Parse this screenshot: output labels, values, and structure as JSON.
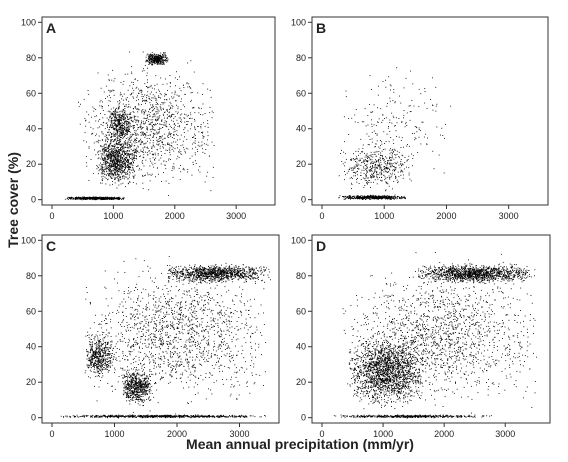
{
  "chart_data": [
    {
      "type": "scatter",
      "panel_label": "A",
      "xlim": [
        0,
        3600
      ],
      "ylim": [
        -3,
        103
      ],
      "x_ticks": [
        0,
        1000,
        2000,
        3000
      ],
      "y_ticks": [
        0,
        20,
        40,
        60,
        80,
        100
      ],
      "clusters": [
        {
          "x": [
            200,
            1200
          ],
          "y": [
            0,
            2
          ],
          "n": 600
        },
        {
          "x": [
            700,
            1400
          ],
          "y": [
            5,
            40
          ],
          "n": 900
        },
        {
          "x": [
            900,
            1300
          ],
          "y": [
            30,
            55
          ],
          "n": 350
        },
        {
          "x": [
            1500,
            1900
          ],
          "y": [
            75,
            84
          ],
          "n": 350
        },
        {
          "x": [
            400,
            2700
          ],
          "y": [
            0,
            85
          ],
          "n": 1200
        }
      ]
    },
    {
      "type": "scatter",
      "panel_label": "B",
      "xlim": [
        0,
        3600
      ],
      "ylim": [
        -3,
        103
      ],
      "x_ticks": [
        0,
        1000,
        2000,
        3000
      ],
      "y_ticks": [
        0,
        20,
        40,
        60,
        80,
        100
      ],
      "clusters": [
        {
          "x": [
            250,
            1400
          ],
          "y": [
            0,
            3
          ],
          "n": 500
        },
        {
          "x": [
            250,
            1500
          ],
          "y": [
            3,
            35
          ],
          "n": 450
        },
        {
          "x": [
            250,
            2100
          ],
          "y": [
            3,
            85
          ],
          "n": 200
        }
      ]
    },
    {
      "type": "scatter",
      "panel_label": "C",
      "xlim": [
        0,
        3600
      ],
      "ylim": [
        -3,
        103
      ],
      "x_ticks": [
        0,
        1000,
        2000,
        3000
      ],
      "y_ticks": [
        0,
        20,
        40,
        60,
        80,
        100
      ],
      "clusters": [
        {
          "x": [
            50,
            3500
          ],
          "y": [
            0,
            2
          ],
          "n": 700
        },
        {
          "x": [
            500,
            1000
          ],
          "y": [
            20,
            50
          ],
          "n": 500
        },
        {
          "x": [
            1100,
            1600
          ],
          "y": [
            5,
            30
          ],
          "n": 600
        },
        {
          "x": [
            1800,
            3500
          ],
          "y": [
            75,
            88
          ],
          "n": 1100
        },
        {
          "x": [
            500,
            3500
          ],
          "y": [
            0,
            95
          ],
          "n": 1500
        }
      ]
    },
    {
      "type": "scatter",
      "panel_label": "D",
      "xlim": [
        0,
        3700
      ],
      "ylim": [
        -3,
        103
      ],
      "x_ticks": [
        0,
        1000,
        2000,
        3000
      ],
      "y_ticks": [
        0,
        20,
        40,
        60,
        80,
        100
      ],
      "clusters": [
        {
          "x": [
            100,
            2800
          ],
          "y": [
            0,
            2
          ],
          "n": 500
        },
        {
          "x": [
            400,
            1700
          ],
          "y": [
            3,
            50
          ],
          "n": 1800
        },
        {
          "x": [
            1500,
            3500
          ],
          "y": [
            75,
            88
          ],
          "n": 1300
        },
        {
          "x": [
            300,
            3600
          ],
          "y": [
            0,
            95
          ],
          "n": 1500
        }
      ]
    }
  ],
  "ylabel": "Tree cover (%)",
  "xlabel": "Mean annual precipitation (mm/yr)",
  "colors": {
    "points": "#000000",
    "axes": "#333333",
    "text": "#222222"
  }
}
